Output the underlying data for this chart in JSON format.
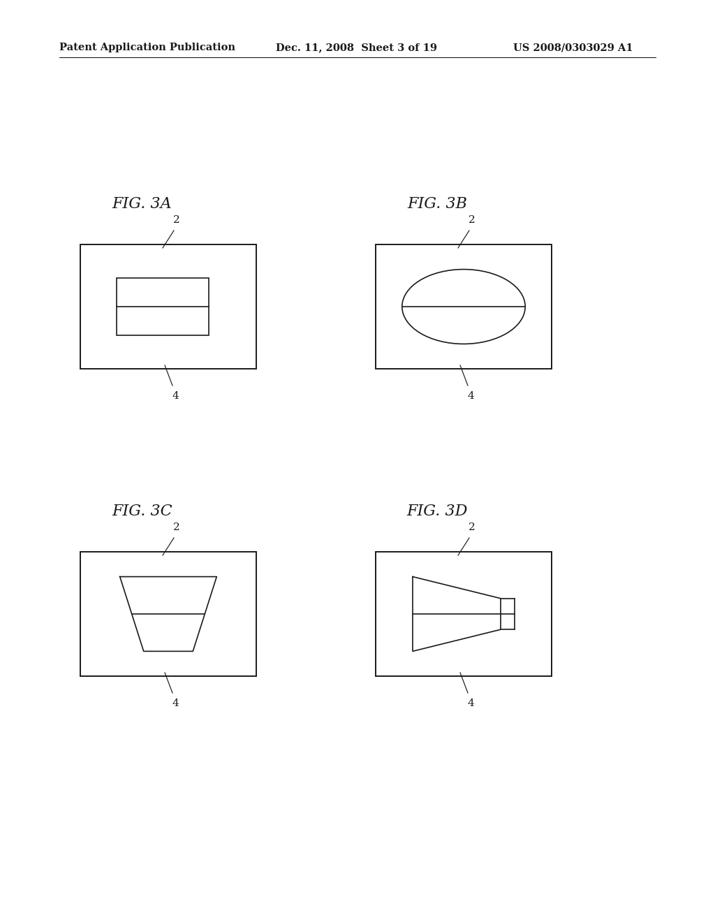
{
  "bg_color": "#ffffff",
  "line_color": "#1a1a1a",
  "header_left": "Patent Application Publication",
  "header_mid": "Dec. 11, 2008  Sheet 3 of 19",
  "header_right": "US 2008/0303029 A1",
  "header_fontsize": 10.5,
  "fig_label_fontsize": 16,
  "annotation_fontsize": 11,
  "lw_outer": 1.4,
  "lw_inner": 1.2
}
